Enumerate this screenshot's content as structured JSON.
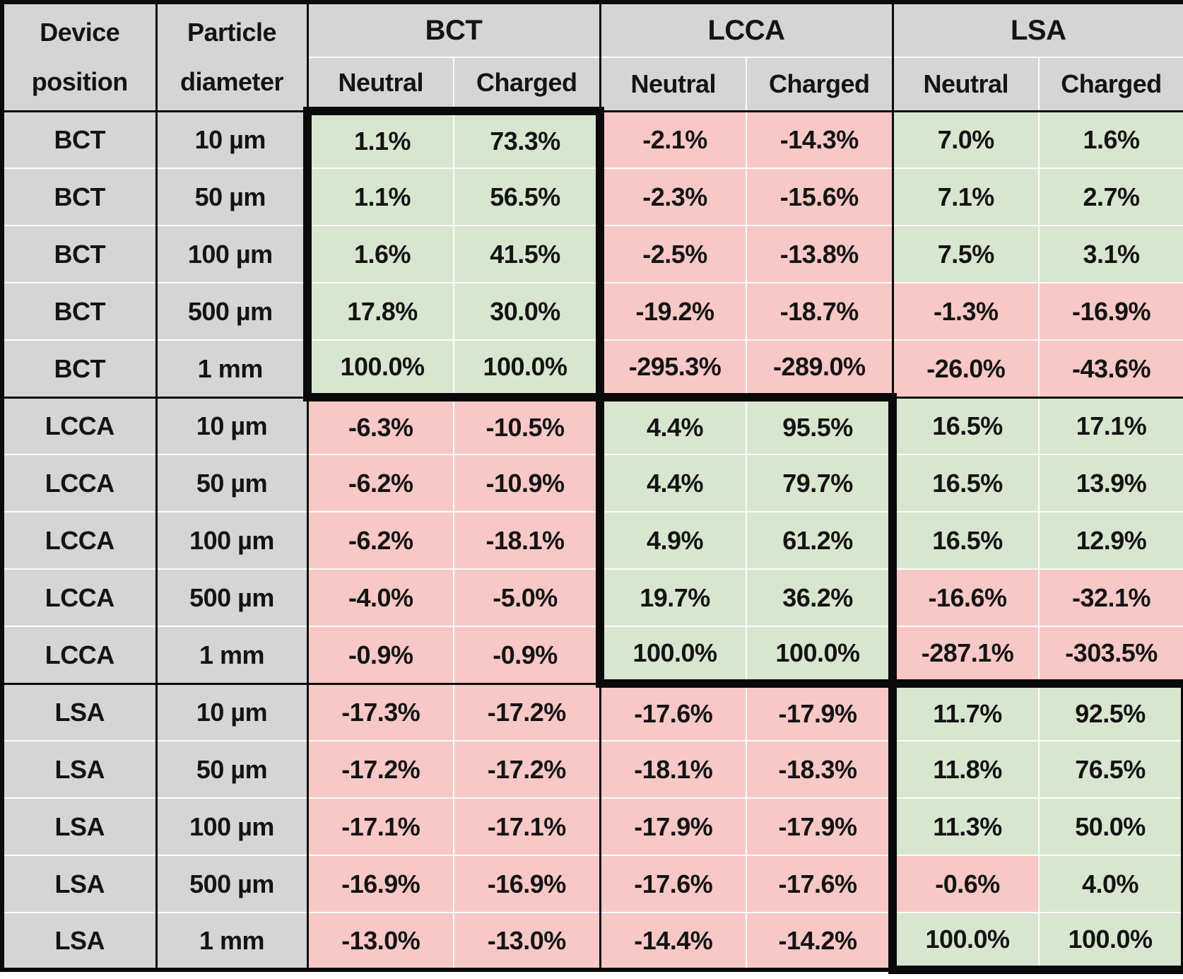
{
  "table": {
    "device_header": "Device position",
    "particle_header": "Particle diameter",
    "groups": [
      {
        "label": "BCT",
        "sub": [
          "Neutral",
          "Charged"
        ]
      },
      {
        "label": "LCCA",
        "sub": [
          "Neutral",
          "Charged"
        ]
      },
      {
        "label": "LSA",
        "sub": [
          "Neutral",
          "Charged"
        ]
      }
    ],
    "rows": [
      {
        "device": "BCT",
        "diameter": "10 µm",
        "values": [
          "1.1%",
          "73.3%",
          "-2.1%",
          "-14.3%",
          "7.0%",
          "1.6%"
        ]
      },
      {
        "device": "BCT",
        "diameter": "50 µm",
        "values": [
          "1.1%",
          "56.5%",
          "-2.3%",
          "-15.6%",
          "7.1%",
          "2.7%"
        ]
      },
      {
        "device": "BCT",
        "diameter": "100 µm",
        "values": [
          "1.6%",
          "41.5%",
          "-2.5%",
          "-13.8%",
          "7.5%",
          "3.1%"
        ]
      },
      {
        "device": "BCT",
        "diameter": "500 µm",
        "values": [
          "17.8%",
          "30.0%",
          "-19.2%",
          "-18.7%",
          "-1.3%",
          "-16.9%"
        ]
      },
      {
        "device": "BCT",
        "diameter": "1 mm",
        "values": [
          "100.0%",
          "100.0%",
          "-295.3%",
          "-289.0%",
          "-26.0%",
          "-43.6%"
        ]
      },
      {
        "device": "LCCA",
        "diameter": "10 µm",
        "values": [
          "-6.3%",
          "-10.5%",
          "4.4%",
          "95.5%",
          "16.5%",
          "17.1%"
        ]
      },
      {
        "device": "LCCA",
        "diameter": "50 µm",
        "values": [
          "-6.2%",
          "-10.9%",
          "4.4%",
          "79.7%",
          "16.5%",
          "13.9%"
        ]
      },
      {
        "device": "LCCA",
        "diameter": "100 µm",
        "values": [
          "-6.2%",
          "-18.1%",
          "4.9%",
          "61.2%",
          "16.5%",
          "12.9%"
        ]
      },
      {
        "device": "LCCA",
        "diameter": "500 µm",
        "values": [
          "-4.0%",
          "-5.0%",
          "19.7%",
          "36.2%",
          "-16.6%",
          "-32.1%"
        ]
      },
      {
        "device": "LCCA",
        "diameter": "1 mm",
        "values": [
          "-0.9%",
          "-0.9%",
          "100.0%",
          "100.0%",
          "-287.1%",
          "-303.5%"
        ]
      },
      {
        "device": "LSA",
        "diameter": "10 µm",
        "values": [
          "-17.3%",
          "-17.2%",
          "-17.6%",
          "-17.9%",
          "11.7%",
          "92.5%"
        ]
      },
      {
        "device": "LSA",
        "diameter": "50 µm",
        "values": [
          "-17.2%",
          "-17.2%",
          "-18.1%",
          "-18.3%",
          "11.8%",
          "76.5%"
        ]
      },
      {
        "device": "LSA",
        "diameter": "100 µm",
        "values": [
          "-17.1%",
          "-17.1%",
          "-17.9%",
          "-17.9%",
          "11.3%",
          "50.0%"
        ]
      },
      {
        "device": "LSA",
        "diameter": "500 µm",
        "values": [
          "-16.9%",
          "-16.9%",
          "-17.6%",
          "-17.6%",
          "-0.6%",
          "4.0%"
        ]
      },
      {
        "device": "LSA",
        "diameter": "1 mm",
        "values": [
          "-13.0%",
          "-13.0%",
          "-14.4%",
          "-14.2%",
          "100.0%",
          "100.0%"
        ]
      }
    ],
    "colors": {
      "positive_bg": "#d8e6cf",
      "negative_bg": "#f7c8c6",
      "header_bg": "#d5d5d5",
      "grid_black": "#0a0a0a",
      "cell_separator": "#fbfbfb"
    }
  }
}
